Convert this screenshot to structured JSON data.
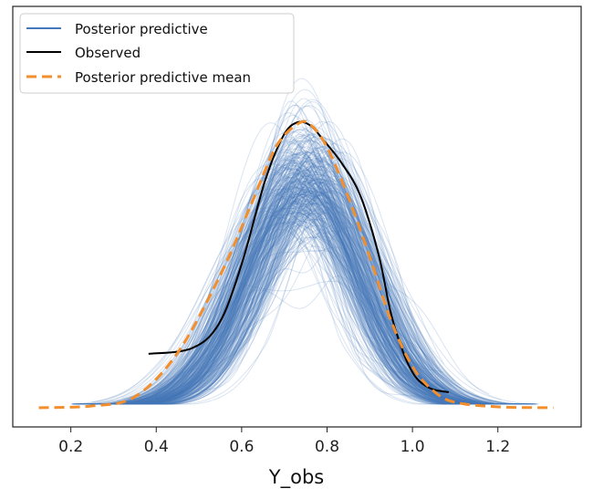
{
  "chart_data": {
    "type": "line",
    "title": "",
    "xlabel": "Y_obs",
    "ylabel": "",
    "xlim": [
      0.064,
      1.395
    ],
    "ylim": [
      -0.21,
      4.39
    ],
    "xticks": [
      0.2,
      0.4,
      0.6,
      0.8,
      1.0,
      1.2
    ],
    "xtick_labels": [
      "0.2",
      "0.4",
      "0.6",
      "0.8",
      "1.0",
      "1.2"
    ],
    "yticks_visible": false,
    "grid": false,
    "legend": {
      "placement": "top-left",
      "entries": [
        {
          "label": "Posterior predictive",
          "color": "#4477bb",
          "style": "solid"
        },
        {
          "label": "Observed",
          "color": "#000000",
          "style": "solid"
        },
        {
          "label": "Posterior predictive mean",
          "color": "#f28e2b",
          "style": "dashed"
        }
      ]
    },
    "series": [
      {
        "name": "Observed",
        "color": "#000000",
        "x": [
          0.382,
          0.483,
          0.547,
          0.6,
          0.654,
          0.697,
          0.729,
          0.76,
          0.793,
          0.835,
          0.878,
          0.921,
          0.953,
          0.996,
          1.038,
          1.085
        ],
        "y": [
          0.59,
          0.65,
          0.92,
          1.57,
          2.47,
          2.97,
          3.12,
          3.09,
          2.92,
          2.67,
          2.32,
          1.67,
          0.97,
          0.42,
          0.22,
          0.17
        ]
      },
      {
        "name": "Posterior predictive mean",
        "color": "#f28e2b",
        "x": [
          0.125,
          0.25,
          0.35,
          0.45,
          0.55,
          0.62,
          0.68,
          0.73,
          0.76,
          0.8,
          0.85,
          0.9,
          0.95,
          1.0,
          1.05,
          1.1,
          1.2,
          1.33
        ],
        "y": [
          0,
          0.02,
          0.12,
          0.6,
          1.45,
          2.2,
          2.85,
          3.1,
          3.1,
          2.85,
          2.3,
          1.65,
          0.95,
          0.45,
          0.18,
          0.06,
          0.01,
          0
        ]
      },
      {
        "name": "Posterior predictive",
        "color": "#4477bb"
      }
    ]
  }
}
